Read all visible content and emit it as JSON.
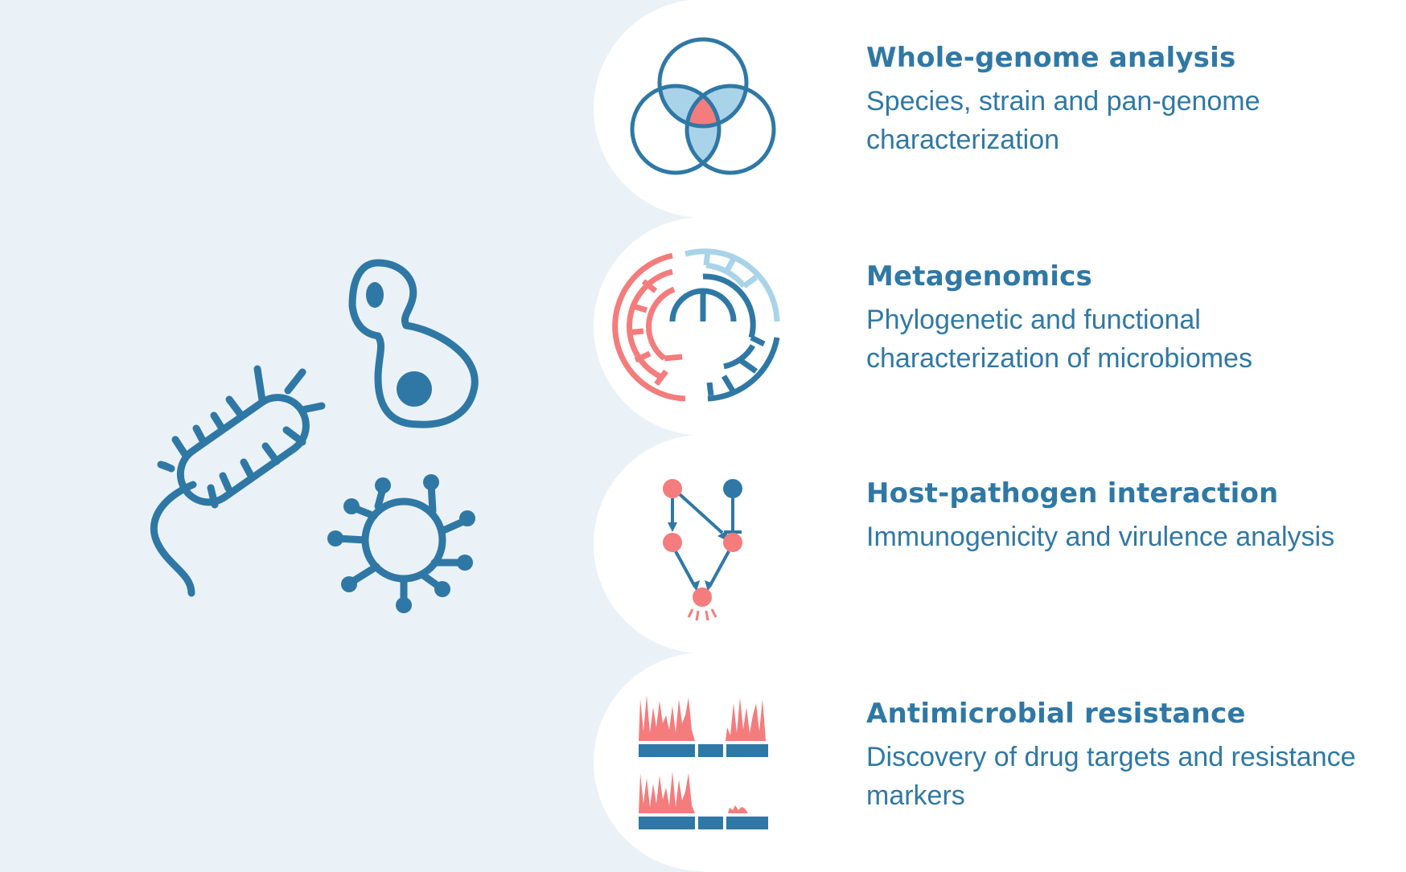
{
  "colors": {
    "background": "#eaf2f7",
    "panel": "#ffffff",
    "primary_blue": "#2f78a5",
    "light_blue": "#a9d3e9",
    "salmon": "#f47c7c"
  },
  "microbes": [
    {
      "icon": "bacterium-icon"
    },
    {
      "icon": "yeast-cell-icon"
    },
    {
      "icon": "virus-icon"
    }
  ],
  "services": [
    {
      "title": "Whole-genome analysis",
      "description": "Species, strain and pan-genome characterization",
      "icon": "venn-diagram-icon"
    },
    {
      "title": "Metagenomics",
      "description": "Phylogenetic and functional characterization of microbiomes",
      "icon": "circular-phylogeny-icon"
    },
    {
      "title": "Host-pathogen interaction",
      "description": "Immunogenicity and virulence analysis",
      "icon": "interaction-network-icon"
    },
    {
      "title": "Antimicrobial resistance",
      "description": "Discovery of drug targets and resistance markers",
      "icon": "coverage-plot-icon"
    }
  ]
}
